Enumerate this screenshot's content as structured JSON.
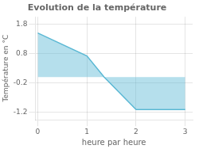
{
  "chart_data": {
    "type": "area",
    "title": "Evolution de la température",
    "xlabel": "heure par heure",
    "ylabel": "Température en °C",
    "x": [
      0,
      1.0,
      1.35,
      2.0,
      3.0
    ],
    "values": [
      1.5,
      0.72,
      0.0,
      -1.1,
      -1.1
    ],
    "color": "#5bb8d4",
    "xlim": [
      -0.05,
      3.15
    ],
    "ylim": [
      -1.45,
      2.05
    ],
    "xticks": [
      0,
      1,
      2,
      3
    ],
    "yticks": [
      -1.2,
      -0.2,
      0.8,
      1.8
    ],
    "grid": true
  }
}
